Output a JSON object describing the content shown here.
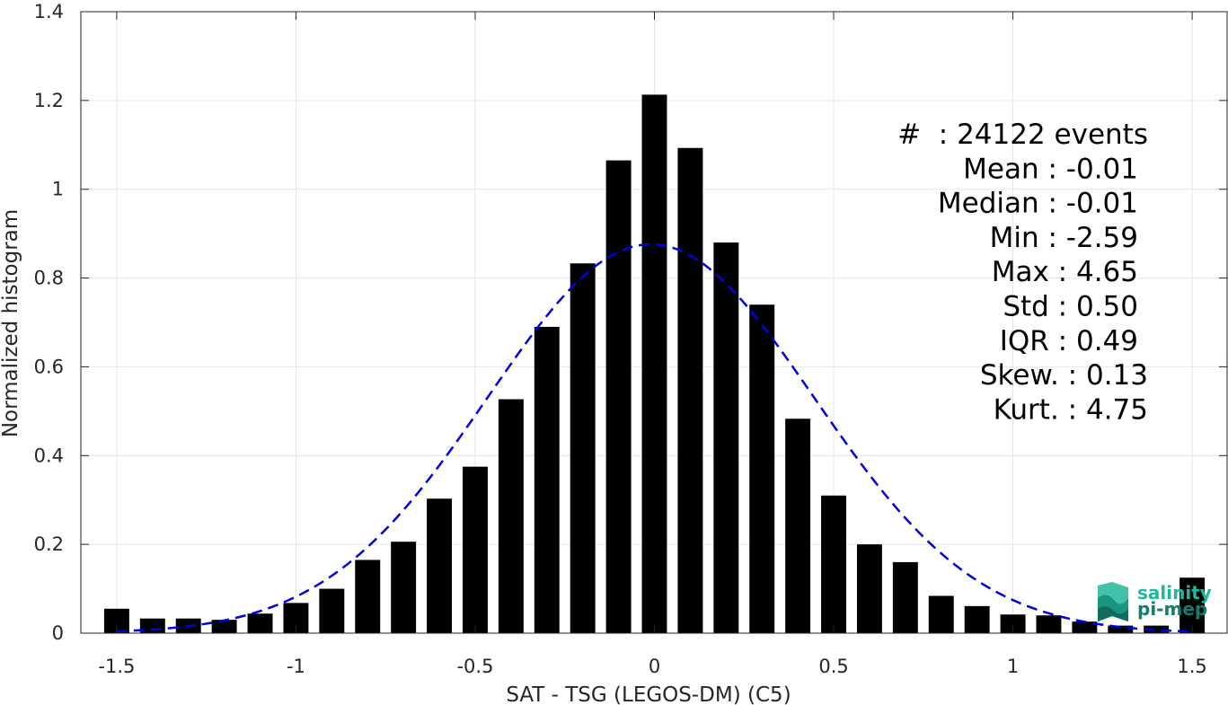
{
  "chart_data": {
    "type": "bar",
    "xlabel": "SAT - TSG (LEGOS-DM) (C5)",
    "ylabel": "Normalized histogram",
    "xlim": [
      -1.6,
      1.6
    ],
    "ylim": [
      0,
      1.4
    ],
    "grid": true,
    "x_ticks": [
      -1.5,
      -1,
      -0.5,
      0,
      0.5,
      1,
      1.5
    ],
    "x_tick_labels": [
      "-1.5",
      "-1",
      "-0.5",
      "0",
      "0.5",
      "1",
      "1.5"
    ],
    "y_ticks": [
      0,
      0.2,
      0.4,
      0.6,
      0.8,
      1,
      1.2,
      1.4
    ],
    "y_tick_labels": [
      "0",
      "0.2",
      "0.4",
      "0.6",
      "0.8",
      "1",
      "1.2",
      "1.4"
    ],
    "bin_width": 0.1,
    "bin_centers": [
      -1.5,
      -1.4,
      -1.3,
      -1.2,
      -1.1,
      -1.0,
      -0.9,
      -0.8,
      -0.7,
      -0.6,
      -0.5,
      -0.4,
      -0.3,
      -0.2,
      -0.1,
      0.0,
      0.1,
      0.2,
      0.3,
      0.4,
      0.5,
      0.6,
      0.7,
      0.8,
      0.9,
      1.0,
      1.1,
      1.2,
      1.3,
      1.4,
      1.5
    ],
    "values": [
      0.055,
      0.033,
      0.033,
      0.03,
      0.044,
      0.068,
      0.1,
      0.165,
      0.206,
      0.303,
      0.375,
      0.527,
      0.69,
      0.833,
      1.065,
      1.213,
      1.093,
      0.88,
      0.74,
      0.483,
      0.31,
      0.2,
      0.16,
      0.084,
      0.061,
      0.042,
      0.04,
      0.026,
      0.017,
      0.017,
      0.125
    ],
    "bar_color": "#000000",
    "fit_curve": {
      "style": "dashed",
      "color": "#0000e0",
      "mean": -0.01,
      "std": 0.455,
      "peak": 0.876,
      "x_range": [
        -1.5,
        1.5
      ]
    },
    "stats_lines": [
      "#  : 24122 events",
      "Mean : -0.01",
      "Median : -0.01",
      "Min : -2.59",
      "Max : 4.65",
      "Std : 0.50",
      "IQR : 0.49",
      "Skew. : 0.13",
      "Kurt. : 4.75"
    ]
  },
  "logo": {
    "line1": "salinity",
    "line2": "pi-mep",
    "color1": "#1fb89a",
    "color2": "#1a7a6a"
  }
}
